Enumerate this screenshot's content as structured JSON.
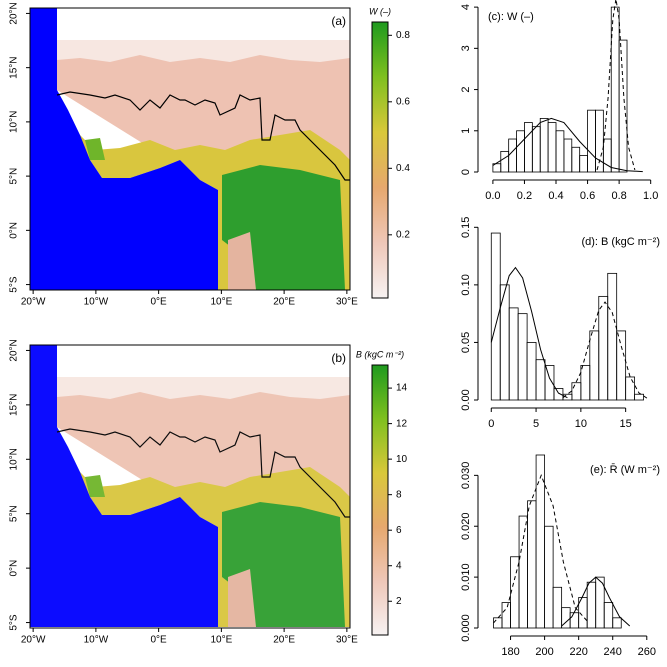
{
  "chart_data": [
    {
      "type": "map",
      "panel": "(a)",
      "xlim": [
        -20.5,
        30.5
      ],
      "ylim": [
        -5.5,
        20.5
      ],
      "xticks": [
        {
          "value": -20,
          "label": "20°W"
        },
        {
          "value": -10,
          "label": "10°W"
        },
        {
          "value": 0,
          "label": "0°E"
        },
        {
          "value": 10,
          "label": "10°E"
        },
        {
          "value": 20,
          "label": "20°E"
        },
        {
          "value": 30,
          "label": "30°E"
        }
      ],
      "yticks": [
        {
          "value": -5,
          "label": "5°S"
        },
        {
          "value": 0,
          "label": "0°N"
        },
        {
          "value": 5,
          "label": "5°N"
        },
        {
          "value": 10,
          "label": "10°N"
        },
        {
          "value": 15,
          "label": "15°N"
        },
        {
          "value": 20,
          "label": "20°N"
        }
      ],
      "colorbar": {
        "label": "W (–)",
        "lim": [
          0.01,
          0.84
        ],
        "ticks": [
          0.2,
          0.4,
          0.6,
          0.8
        ],
        "colors": [
          "#f7f2f2",
          "#efc7b8",
          "#e6a86e",
          "#d9c83a",
          "#7fc01f",
          "#1f9a1f"
        ]
      }
    },
    {
      "type": "map",
      "panel": "(b)",
      "xlim": [
        -20.5,
        30.5
      ],
      "ylim": [
        -5.5,
        20.5
      ],
      "xticks": [
        {
          "value": -20,
          "label": "20°W"
        },
        {
          "value": -10,
          "label": "10°W"
        },
        {
          "value": 0,
          "label": "0°E"
        },
        {
          "value": 10,
          "label": "10°E"
        },
        {
          "value": 20,
          "label": "20°E"
        },
        {
          "value": 30,
          "label": "30°E"
        }
      ],
      "yticks": [
        {
          "value": -5,
          "label": "5°S"
        },
        {
          "value": 0,
          "label": "0°N"
        },
        {
          "value": 5,
          "label": "5°N"
        },
        {
          "value": 10,
          "label": "10°N"
        },
        {
          "value": 15,
          "label": "15°N"
        },
        {
          "value": 20,
          "label": "20°N"
        }
      ],
      "colorbar": {
        "label": "B (kgC m⁻²)",
        "lim": [
          0.1,
          15.3
        ],
        "ticks": [
          2,
          4,
          6,
          8,
          10,
          12,
          14
        ],
        "colors": [
          "#f7f2f2",
          "#efc7b8",
          "#e6a86e",
          "#d9c83a",
          "#7fc01f",
          "#1f9a1f"
        ]
      }
    },
    {
      "type": "histogram",
      "title": "(c): W (–)",
      "bins": [
        0,
        0.05,
        0.1,
        0.15,
        0.2,
        0.25,
        0.3,
        0.35,
        0.4,
        0.45,
        0.5,
        0.55,
        0.6,
        0.65,
        0.7,
        0.75,
        0.8,
        0.85
      ],
      "counts": [
        0.2,
        0.5,
        0.8,
        1.0,
        1.2,
        1.1,
        1.3,
        1.2,
        1.0,
        0.8,
        0.6,
        0.4,
        1.5,
        1.5,
        0.8,
        4.0,
        3.2
      ],
      "curves": [
        {
          "style": "solid",
          "x": [
            0,
            0.1,
            0.2,
            0.3,
            0.37,
            0.45,
            0.55,
            0.65,
            0.75,
            0.85,
            0.95
          ],
          "y": [
            0.16,
            0.4,
            0.8,
            1.2,
            1.3,
            1.2,
            0.74,
            0.34,
            0.11,
            0.03,
            0.01
          ]
        },
        {
          "style": "dashed",
          "x": [
            0.66,
            0.7,
            0.73,
            0.76,
            0.78,
            0.8,
            0.83,
            0.86,
            0.9
          ],
          "y": [
            0.05,
            0.6,
            1.8,
            3.7,
            4.2,
            3.7,
            1.8,
            0.6,
            0.05
          ]
        }
      ],
      "xlim": [
        -0.05,
        1.04
      ],
      "ylim": [
        0,
        4.1
      ],
      "xticks": [
        {
          "value": 0,
          "label": "0.0"
        },
        {
          "value": 0.2,
          "label": "0.2"
        },
        {
          "value": 0.4,
          "label": "0.4"
        },
        {
          "value": 0.6,
          "label": "0.6"
        },
        {
          "value": 0.8,
          "label": "0.8"
        },
        {
          "value": 1,
          "label": "1.0"
        }
      ],
      "yticks": [
        0,
        1,
        2,
        3,
        4
      ]
    },
    {
      "type": "histogram",
      "title": "(d): B (kgC m⁻²)",
      "bins": [
        0,
        1,
        2,
        3,
        4,
        5,
        6,
        7,
        8,
        9,
        10,
        11,
        12,
        13,
        14,
        15,
        16,
        17
      ],
      "counts": [
        0.145,
        0.1,
        0.08,
        0.075,
        0.05,
        0.035,
        0.03,
        0.01,
        0.005,
        0.015,
        0.03,
        0.06,
        0.09,
        0.11,
        0.06,
        0.02,
        0.005
      ],
      "curves": [
        {
          "style": "solid",
          "x": [
            0,
            1,
            2,
            2.7,
            3.5,
            4.5,
            5.5,
            6.5,
            7.5,
            8.5
          ],
          "y": [
            0.05,
            0.08,
            0.108,
            0.115,
            0.106,
            0.077,
            0.044,
            0.019,
            0.006,
            0.002
          ]
        },
        {
          "style": "dashed",
          "x": [
            8,
            9,
            10,
            11,
            12,
            12.7,
            13.5,
            14.5,
            15.5,
            16.5,
            17.5
          ],
          "y": [
            0.002,
            0.008,
            0.024,
            0.052,
            0.078,
            0.085,
            0.076,
            0.047,
            0.02,
            0.006,
            0.001
          ]
        }
      ],
      "xlim": [
        -0.7,
        18.5
      ],
      "ylim": [
        0,
        0.152
      ],
      "xticks": [
        0,
        5,
        10,
        15
      ],
      "yticks": [
        {
          "value": 0,
          "label": "0.00"
        },
        {
          "value": 0.05,
          "label": "0.05"
        },
        {
          "value": 0.1,
          "label": "0.10"
        },
        {
          "value": 0.15,
          "label": "0.15"
        }
      ]
    },
    {
      "type": "histogram",
      "title": "(e): R̄ (W m⁻²)",
      "bins": [
        170,
        175,
        180,
        185,
        190,
        195,
        200,
        205,
        210,
        215,
        220,
        225,
        230,
        235,
        240,
        245
      ],
      "counts": [
        0.002,
        0.005,
        0.014,
        0.022,
        0.025,
        0.034,
        0.02,
        0.008,
        0.004,
        0.003,
        0.006,
        0.009,
        0.01,
        0.005,
        0.002
      ],
      "curves": [
        {
          "style": "dashed",
          "x": [
            170,
            178,
            185,
            191,
            198,
            205,
            211,
            218,
            226
          ],
          "y": [
            0.001,
            0.004,
            0.013,
            0.024,
            0.03,
            0.024,
            0.013,
            0.004,
            0.001
          ]
        },
        {
          "style": "solid",
          "x": [
            210,
            216,
            222,
            226,
            230,
            234,
            238,
            244,
            250
          ],
          "y": [
            0.0004,
            0.0022,
            0.006,
            0.0088,
            0.01,
            0.0088,
            0.006,
            0.0022,
            0.0004
          ]
        }
      ],
      "xlim": [
        165,
        266
      ],
      "ylim": [
        0,
        0.034
      ],
      "xticks": [
        180,
        200,
        220,
        240,
        260
      ],
      "yticks": [
        {
          "value": 0,
          "label": "0.000"
        },
        {
          "value": 0.01,
          "label": "0.010"
        },
        {
          "value": 0.02,
          "label": "0.020"
        },
        {
          "value": 0.03,
          "label": "0.030"
        }
      ]
    }
  ]
}
